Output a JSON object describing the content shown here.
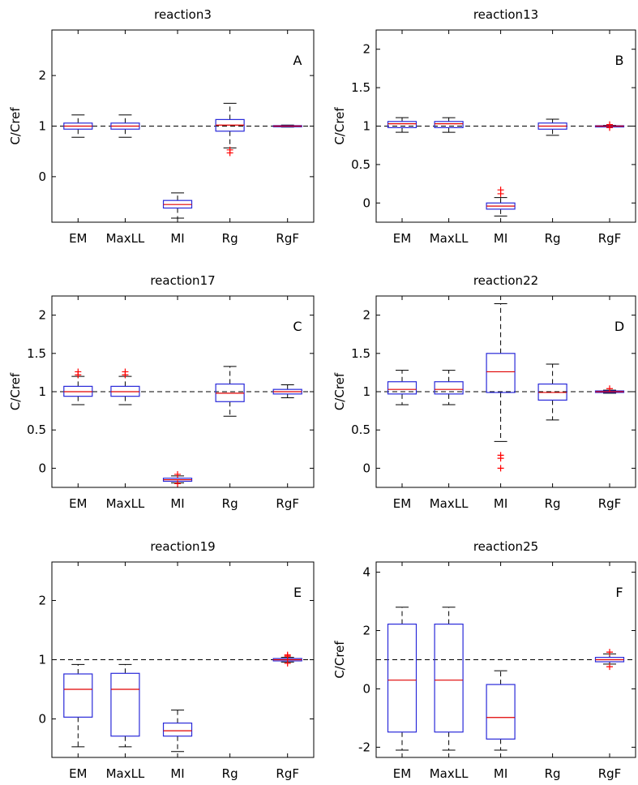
{
  "colors": {
    "box": "#2929d9",
    "median": "#e00000",
    "outlier": "#ff0000",
    "whisker": "#000000",
    "refline": "#000000"
  },
  "chart_data": [
    {
      "type": "box",
      "title": "reaction3",
      "panel_label": "A",
      "ylabel": "C/Cref",
      "ylim": [
        -0.9,
        2.9
      ],
      "yticks": [
        0,
        1,
        2
      ],
      "ytick_labels": [
        "0",
        "1",
        "2"
      ],
      "ref_line": 1,
      "categories": [
        "EM",
        "MaxLL",
        "MI",
        "Rg",
        "RgF"
      ],
      "boxes": [
        {
          "category": "EM",
          "whislo": 0.78,
          "q1": 0.94,
          "med": 1.0,
          "q3": 1.06,
          "whishi": 1.22,
          "outliers": []
        },
        {
          "category": "MaxLL",
          "whislo": 0.78,
          "q1": 0.94,
          "med": 1.0,
          "q3": 1.06,
          "whishi": 1.22,
          "outliers": []
        },
        {
          "category": "MI",
          "whislo": -0.82,
          "q1": -0.62,
          "med": -0.55,
          "q3": -0.47,
          "whishi": -0.32,
          "outliers": []
        },
        {
          "category": "Rg",
          "whislo": 0.57,
          "q1": 0.9,
          "med": 1.02,
          "q3": 1.13,
          "whishi": 1.45,
          "outliers": [
            0.53,
            0.47
          ]
        },
        {
          "category": "RgF",
          "whislo": 0.98,
          "q1": 0.99,
          "med": 1.0,
          "q3": 1.01,
          "whishi": 1.02,
          "outliers": []
        }
      ]
    },
    {
      "type": "box",
      "title": "reaction13",
      "panel_label": "B",
      "ylabel": "C/Cref",
      "ylim": [
        -0.25,
        2.25
      ],
      "yticks": [
        0,
        0.5,
        1,
        1.5,
        2
      ],
      "ytick_labels": [
        "0",
        "0.5",
        "1",
        "1.5",
        "2"
      ],
      "ref_line": 1,
      "categories": [
        "EM",
        "MaxLL",
        "MI",
        "Rg",
        "RgF"
      ],
      "boxes": [
        {
          "category": "EM",
          "whislo": 0.92,
          "q1": 0.98,
          "med": 1.03,
          "q3": 1.06,
          "whishi": 1.11,
          "outliers": []
        },
        {
          "category": "MaxLL",
          "whislo": 0.92,
          "q1": 0.98,
          "med": 1.03,
          "q3": 1.06,
          "whishi": 1.11,
          "outliers": []
        },
        {
          "category": "MI",
          "whislo": -0.17,
          "q1": -0.08,
          "med": -0.04,
          "q3": 0.0,
          "whishi": 0.07,
          "outliers": [
            0.12,
            0.17
          ]
        },
        {
          "category": "Rg",
          "whislo": 0.88,
          "q1": 0.96,
          "med": 1.0,
          "q3": 1.04,
          "whishi": 1.09,
          "outliers": []
        },
        {
          "category": "RgF",
          "whislo": 0.99,
          "q1": 0.995,
          "med": 1.0,
          "q3": 1.005,
          "whishi": 1.01,
          "outliers": [
            0.98,
            1.02
          ]
        }
      ]
    },
    {
      "type": "box",
      "title": "reaction17",
      "panel_label": "C",
      "ylabel": "C/Cref",
      "ylim": [
        -0.25,
        2.25
      ],
      "yticks": [
        0,
        0.5,
        1,
        1.5,
        2
      ],
      "ytick_labels": [
        "0",
        "0.5",
        "1",
        "1.5",
        "2"
      ],
      "ref_line": 1,
      "categories": [
        "EM",
        "MaxLL",
        "MI",
        "Rg",
        "RgF"
      ],
      "boxes": [
        {
          "category": "EM",
          "whislo": 0.83,
          "q1": 0.94,
          "med": 1.0,
          "q3": 1.07,
          "whishi": 1.2,
          "outliers": [
            1.26,
            1.22
          ]
        },
        {
          "category": "MaxLL",
          "whislo": 0.83,
          "q1": 0.94,
          "med": 1.0,
          "q3": 1.07,
          "whishi": 1.2,
          "outliers": [
            1.26,
            1.22
          ]
        },
        {
          "category": "MI",
          "whislo": -0.19,
          "q1": -0.17,
          "med": -0.15,
          "q3": -0.13,
          "whishi": -0.1,
          "outliers": [
            -0.08,
            -0.2
          ]
        },
        {
          "category": "Rg",
          "whislo": 0.68,
          "q1": 0.87,
          "med": 0.98,
          "q3": 1.1,
          "whishi": 1.33,
          "outliers": []
        },
        {
          "category": "RgF",
          "whislo": 0.92,
          "q1": 0.97,
          "med": 1.0,
          "q3": 1.03,
          "whishi": 1.09,
          "outliers": []
        }
      ]
    },
    {
      "type": "box",
      "title": "reaction22",
      "panel_label": "D",
      "ylabel": "C/Cref",
      "ylim": [
        -0.25,
        2.25
      ],
      "yticks": [
        0,
        0.5,
        1,
        1.5,
        2
      ],
      "ytick_labels": [
        "0",
        "0.5",
        "1",
        "1.5",
        "2"
      ],
      "ref_line": 1,
      "categories": [
        "EM",
        "MaxLL",
        "MI",
        "Rg",
        "RgF"
      ],
      "boxes": [
        {
          "category": "EM",
          "whislo": 0.83,
          "q1": 0.97,
          "med": 1.03,
          "q3": 1.13,
          "whishi": 1.28,
          "outliers": []
        },
        {
          "category": "MaxLL",
          "whislo": 0.83,
          "q1": 0.97,
          "med": 1.03,
          "q3": 1.13,
          "whishi": 1.28,
          "outliers": []
        },
        {
          "category": "MI",
          "whislo": 0.35,
          "q1": 0.99,
          "med": 1.26,
          "q3": 1.5,
          "whishi": 2.15,
          "outliers": [
            0.17,
            0.13,
            0.0
          ]
        },
        {
          "category": "Rg",
          "whislo": 0.63,
          "q1": 0.89,
          "med": 0.99,
          "q3": 1.1,
          "whishi": 1.36,
          "outliers": []
        },
        {
          "category": "RgF",
          "whislo": 0.98,
          "q1": 0.99,
          "med": 1.0,
          "q3": 1.01,
          "whishi": 1.02,
          "outliers": [
            1.04
          ]
        }
      ]
    },
    {
      "type": "box",
      "title": "reaction19",
      "panel_label": "E",
      "ylabel": "",
      "ylim": [
        -0.65,
        2.65
      ],
      "yticks": [
        0,
        1,
        2
      ],
      "ytick_labels": [
        "0",
        "1",
        "2"
      ],
      "ref_line": 1,
      "categories": [
        "EM",
        "MaxLL",
        "MI",
        "Rg",
        "RgF"
      ],
      "boxes": [
        {
          "category": "EM",
          "whislo": -0.47,
          "q1": 0.03,
          "med": 0.5,
          "q3": 0.76,
          "whishi": 0.92,
          "outliers": []
        },
        {
          "category": "MaxLL",
          "whislo": -0.47,
          "q1": -0.29,
          "med": 0.5,
          "q3": 0.77,
          "whishi": 0.92,
          "outliers": []
        },
        {
          "category": "MI",
          "whislo": -0.55,
          "q1": -0.29,
          "med": -0.2,
          "q3": -0.07,
          "whishi": 0.15,
          "outliers": []
        },
        {
          "category": "RgF",
          "whislo": 0.96,
          "q1": 0.98,
          "med": 1.0,
          "q3": 1.02,
          "whishi": 1.04,
          "outliers": [
            0.94,
            1.06,
            1.08
          ]
        }
      ]
    },
    {
      "type": "box",
      "title": "reaction25",
      "panel_label": "F",
      "ylabel": "C/Cref",
      "ylim": [
        -2.35,
        4.35
      ],
      "yticks": [
        -2,
        0,
        2,
        4
      ],
      "ytick_labels": [
        "-2",
        "0",
        "2",
        "4"
      ],
      "ref_line": 1,
      "categories": [
        "EM",
        "MaxLL",
        "MI",
        "Rg",
        "RgF"
      ],
      "boxes": [
        {
          "category": "EM",
          "whislo": -2.1,
          "q1": -1.48,
          "med": 0.3,
          "q3": 2.22,
          "whishi": 2.8,
          "outliers": []
        },
        {
          "category": "MaxLL",
          "whislo": -2.1,
          "q1": -1.48,
          "med": 0.3,
          "q3": 2.22,
          "whishi": 2.8,
          "outliers": []
        },
        {
          "category": "MI",
          "whislo": -2.1,
          "q1": -1.72,
          "med": -0.98,
          "q3": 0.15,
          "whishi": 0.62,
          "outliers": []
        },
        {
          "category": "RgF",
          "whislo": 0.85,
          "q1": 0.93,
          "med": 1.0,
          "q3": 1.08,
          "whishi": 1.2,
          "outliers": [
            0.76,
            1.26
          ]
        }
      ]
    }
  ]
}
